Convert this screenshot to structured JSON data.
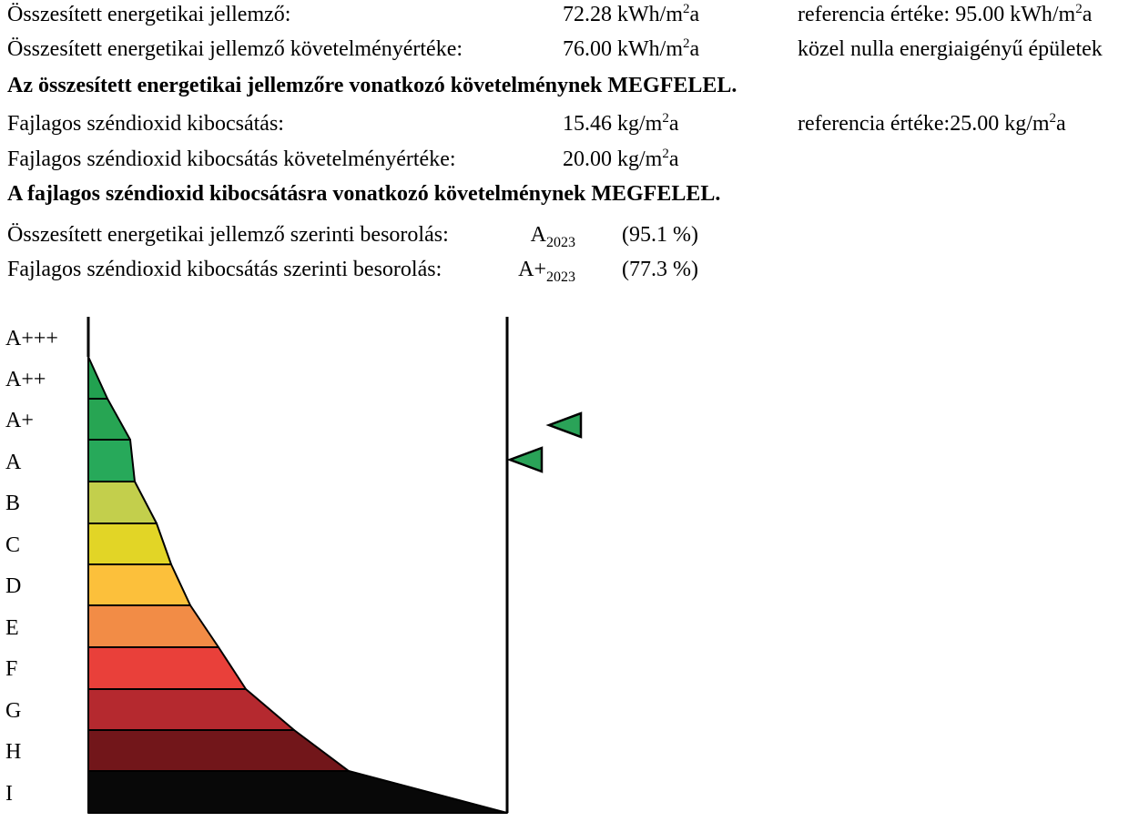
{
  "energy": {
    "label": "Összesített energetikai jellemző:",
    "value": "72.28 kWh/m",
    "value_sup": "2",
    "value_tail": "a",
    "ref": "referencia értéke: 95.00 kWh/m",
    "ref_sup": "2",
    "ref_tail": "a"
  },
  "energy_req": {
    "label": "Összesített energetikai jellemző követelményértéke:",
    "value": "76.00 kWh/m",
    "value_sup": "2",
    "value_tail": "a",
    "note": "közel nulla energiaigényű épületek"
  },
  "energy_result": "Az összesített energetikai jellemzőre vonatkozó követelménynek MEGFELEL.",
  "co2": {
    "label": "Fajlagos széndioxid kibocsátás:",
    "value": "15.46 kg/m",
    "value_sup": "2",
    "value_tail": "a",
    "ref": "referencia értéke:25.00 kg/m",
    "ref_sup": "2",
    "ref_tail": "a"
  },
  "co2_req": {
    "label": "Fajlagos széndioxid kibocsátás követelményértéke:",
    "value": "20.00 kg/m",
    "value_sup": "2",
    "value_tail": "a"
  },
  "co2_result": "A fajlagos széndioxid kibocsátásra vonatkozó követelménynek MEGFELEL.",
  "class_energy": {
    "label": "Összesített energetikai jellemző szerinti besorolás:",
    "grade": "A",
    "sub": "2023",
    "percent": "(95.1 %)"
  },
  "class_co2": {
    "label": "Fajlagos széndioxid kibocsátás szerinti besorolás:",
    "grade": "A+",
    "sub": "2023",
    "percent": "(77.3 %)"
  },
  "scale": {
    "grades": [
      "A+++",
      "A++",
      "A+",
      "A",
      "B",
      "C",
      "D",
      "E",
      "F",
      "G",
      "H",
      "I"
    ],
    "colors": [
      "#ffffff",
      "#22a150",
      "#27a553",
      "#27a95a",
      "#c3cf4c",
      "#e2d526",
      "#fcc03b",
      "#f28c46",
      "#e9403a",
      "#b5292f",
      "#72161a",
      "#080808"
    ],
    "markers": [
      {
        "name": "energy-marker",
        "grade": "A",
        "color": "#2aa358"
      },
      {
        "name": "co2-marker",
        "grade": "A+",
        "color": "#2aa358"
      }
    ]
  }
}
